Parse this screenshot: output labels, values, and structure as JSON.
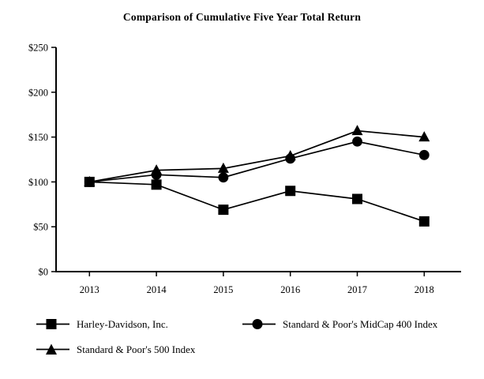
{
  "chart_data": {
    "type": "line",
    "title": "Comparison of Cumulative Five Year Total Return",
    "categories": [
      "2013",
      "2014",
      "2015",
      "2016",
      "2017",
      "2018"
    ],
    "series": [
      {
        "name": "Harley-Davidson, Inc.",
        "marker": "square",
        "color": "#000000",
        "values": [
          100,
          97,
          69,
          90,
          81,
          56
        ]
      },
      {
        "name": "Standard & Poor's MidCap 400 Index",
        "marker": "circle",
        "color": "#000000",
        "values": [
          100,
          108,
          105,
          126,
          145,
          130
        ]
      },
      {
        "name": "Standard & Poor's 500 Index",
        "marker": "triangle",
        "color": "#000000",
        "values": [
          100,
          113,
          115,
          129,
          157,
          150
        ]
      }
    ],
    "xlabel": "",
    "ylabel": "",
    "ylim": [
      0,
      250
    ],
    "y_ticks": [
      {
        "value": 0,
        "label": "$0"
      },
      {
        "value": 50,
        "label": "$50"
      },
      {
        "value": 100,
        "label": "$100"
      },
      {
        "value": 150,
        "label": "$150"
      },
      {
        "value": 200,
        "label": "$200"
      },
      {
        "value": 250,
        "label": "$250"
      }
    ],
    "grid": false,
    "legend_position": "bottom",
    "axis_color": "#000000",
    "background_color": "#ffffff"
  }
}
